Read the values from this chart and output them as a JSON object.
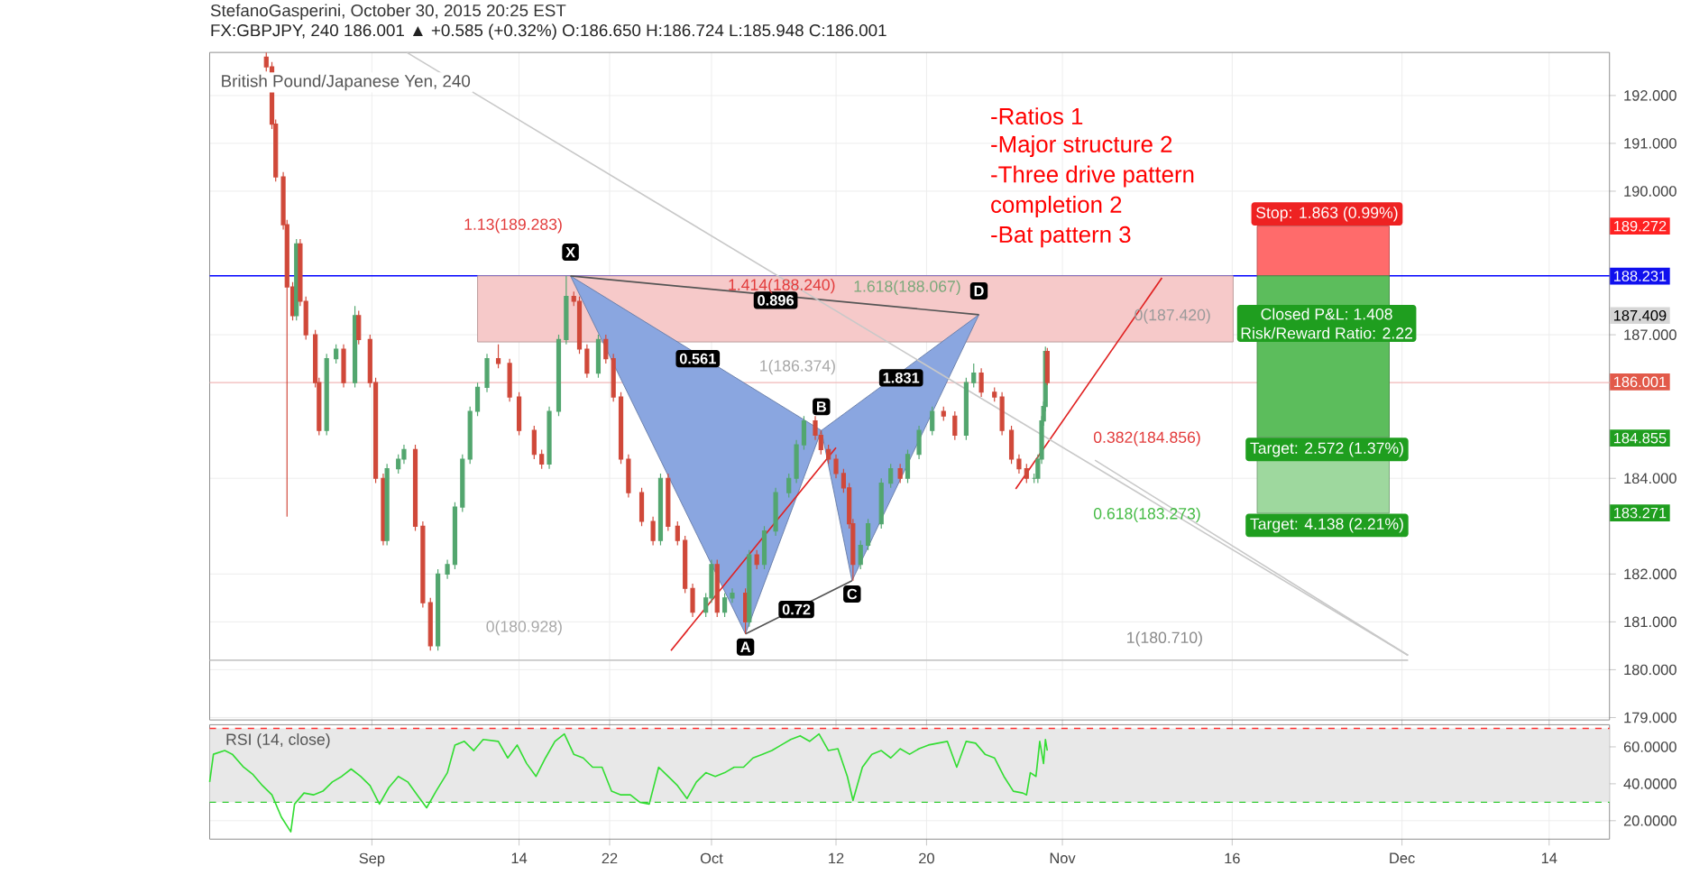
{
  "chart_data": [
    {
      "type": "candlestick",
      "title": "FX:GBPJPY, 240 186.001 ▲ +0.585 (+0.32%) O:186.650 H:186.724 L:185.948 C:186.001",
      "subtitle": "British Pound/Japanese Yen, 240",
      "x": [
        "2015-08-22T16:00",
        "2015-08-23T04:00",
        "2015-08-23T12:00",
        "2015-08-24T04:00",
        "2015-08-24T12:00",
        "2015-08-25T00:00",
        "2015-08-25T08:00",
        "2015-08-25T16:00",
        "2015-08-26T04:00",
        "2015-08-27T00:00",
        "2015-08-27T08:00",
        "2015-08-28T00:00",
        "2015-08-28T20:00",
        "2015-08-29T12:00",
        "2015-08-30T12:00",
        "2015-08-30T20:00",
        "2015-08-31T20:00",
        "2015-09-01T08:00",
        "2015-09-02T00:00",
        "2015-09-02T08:00",
        "2015-09-03T08:00",
        "2015-09-03T20:00",
        "2015-09-04T20:00",
        "2015-09-05T12:00",
        "2015-09-06T04:00",
        "2015-09-06T20:00",
        "2015-09-07T16:00",
        "2015-09-08T08:00",
        "2015-09-09T00:00",
        "2015-09-09T16:00",
        "2015-09-10T08:00",
        "2015-09-11T04:00",
        "2015-09-12T04:00",
        "2015-09-13T04:00",
        "2015-09-14T00:00",
        "2015-09-15T08:00",
        "2015-09-16T00:00",
        "2015-09-16T16:00",
        "2015-09-17T12:00",
        "2015-09-18T04:00",
        "2015-09-18T20:00",
        "2015-09-19T08:00",
        "2015-09-20T00:00",
        "2015-09-21T00:00",
        "2015-09-21T16:00",
        "2015-09-22T08:00",
        "2015-09-23T00:00",
        "2015-09-23T16:00",
        "2015-09-24T20:00",
        "2015-09-25T20:00",
        "2015-09-26T12:00",
        "2015-09-27T04:00",
        "2015-09-28T00:00",
        "2015-09-28T16:00",
        "2015-09-29T08:00",
        "2015-09-30T12:00",
        "2015-10-01T00:00",
        "2015-10-01T12:00",
        "2015-10-02T04:00",
        "2015-10-02T20:00",
        "2015-10-04T00:00",
        "2015-10-04T08:00",
        "2015-10-05T00:00",
        "2015-10-05T16:00",
        "2015-10-06T16:00",
        "2015-10-07T20:00",
        "2015-10-08T12:00",
        "2015-10-09T04:00",
        "2015-10-10T04:00",
        "2015-10-10T16:00",
        "2015-10-11T08:00",
        "2015-10-12T00:00",
        "2015-10-12T16:00",
        "2015-10-13T04:00",
        "2015-10-13T12:00",
        "2015-10-14T04:00",
        "2015-10-14T20:00",
        "2015-10-16T00:00",
        "2015-10-16T20:00",
        "2015-10-17T16:00",
        "2015-10-18T08:00",
        "2015-10-19T08:00",
        "2015-10-20T12:00",
        "2015-10-21T12:00",
        "2015-10-22T12:00",
        "2015-10-23T12:00",
        "2015-10-24T04:00",
        "2015-10-24T20:00",
        "2015-10-26T00:00",
        "2015-10-26T16:00",
        "2015-10-27T12:00",
        "2015-10-28T04:00",
        "2015-10-28T20:00",
        "2015-10-29T12:00",
        "2015-10-29T20:00",
        "2015-10-30T04:00",
        "2015-10-30T08:00",
        "2015-10-30T12:00",
        "2015-10-30T16:00"
      ],
      "ohlc": [
        [
          192.8,
          192.9,
          192.5,
          192.6
        ],
        [
          192.6,
          192.7,
          191.3,
          191.4
        ],
        [
          191.4,
          191.5,
          190.2,
          190.3
        ],
        [
          190.3,
          190.4,
          189.2,
          189.3
        ],
        [
          189.3,
          189.4,
          183.2,
          188.0
        ],
        [
          188.0,
          188.1,
          187.3,
          187.4
        ],
        [
          187.4,
          189.0,
          187.3,
          188.9
        ],
        [
          188.9,
          189.0,
          187.6,
          187.7
        ],
        [
          187.7,
          187.8,
          186.9,
          187.0
        ],
        [
          187.0,
          187.1,
          185.9,
          186.0
        ],
        [
          186.0,
          186.1,
          184.9,
          185.0
        ],
        [
          185.0,
          186.6,
          184.9,
          186.5
        ],
        [
          186.5,
          186.8,
          186.4,
          186.7
        ],
        [
          186.7,
          186.8,
          185.9,
          186.0
        ],
        [
          186.0,
          187.6,
          185.9,
          187.4
        ],
        [
          187.4,
          187.5,
          186.8,
          186.9
        ],
        [
          186.9,
          187.0,
          185.9,
          186.0
        ],
        [
          186.0,
          186.1,
          183.9,
          184.0
        ],
        [
          184.0,
          184.1,
          182.6,
          182.7
        ],
        [
          182.7,
          184.3,
          182.6,
          184.2
        ],
        [
          184.2,
          184.5,
          184.1,
          184.4
        ],
        [
          184.4,
          184.7,
          184.3,
          184.6
        ],
        [
          184.6,
          184.7,
          182.9,
          183.0
        ],
        [
          183.0,
          183.1,
          181.3,
          181.4
        ],
        [
          181.4,
          181.5,
          180.4,
          180.5
        ],
        [
          180.5,
          182.1,
          180.4,
          182.0
        ],
        [
          182.0,
          182.3,
          181.9,
          182.2
        ],
        [
          182.2,
          183.5,
          182.1,
          183.4
        ],
        [
          183.4,
          184.5,
          183.3,
          184.4
        ],
        [
          184.4,
          185.5,
          184.3,
          185.4
        ],
        [
          185.4,
          186.0,
          185.3,
          185.9
        ],
        [
          185.9,
          186.6,
          185.8,
          186.5
        ],
        [
          186.5,
          186.8,
          186.3,
          186.4
        ],
        [
          186.4,
          186.5,
          185.6,
          185.7
        ],
        [
          185.7,
          185.8,
          184.9,
          185.0
        ],
        [
          185.0,
          185.1,
          184.4,
          184.5
        ],
        [
          184.5,
          184.6,
          184.2,
          184.3
        ],
        [
          184.3,
          185.5,
          184.2,
          185.4
        ],
        [
          185.4,
          187.0,
          185.3,
          186.9
        ],
        [
          186.9,
          188.23,
          186.8,
          187.8
        ],
        [
          187.8,
          187.9,
          187.6,
          187.7
        ],
        [
          187.7,
          187.8,
          186.6,
          186.7
        ],
        [
          186.7,
          186.8,
          186.1,
          186.2
        ],
        [
          186.2,
          187.0,
          186.1,
          186.9
        ],
        [
          186.9,
          187.0,
          186.4,
          186.5
        ],
        [
          186.5,
          186.6,
          185.6,
          185.7
        ],
        [
          185.7,
          185.8,
          184.3,
          184.4
        ],
        [
          184.4,
          184.5,
          183.6,
          183.7
        ],
        [
          183.7,
          183.8,
          183.0,
          183.1
        ],
        [
          183.1,
          183.2,
          182.6,
          182.7
        ],
        [
          182.7,
          184.1,
          182.6,
          184.0
        ],
        [
          184.0,
          184.1,
          182.9,
          183.0
        ],
        [
          183.0,
          183.1,
          182.6,
          182.7
        ],
        [
          182.7,
          182.8,
          181.6,
          181.7
        ],
        [
          181.7,
          181.8,
          181.1,
          181.2
        ],
        [
          181.2,
          181.6,
          181.1,
          181.5
        ],
        [
          181.5,
          182.3,
          181.4,
          182.2
        ],
        [
          182.2,
          182.3,
          181.1,
          181.2
        ],
        [
          181.2,
          181.6,
          181.1,
          181.5
        ],
        [
          181.5,
          181.7,
          181.4,
          181.6
        ],
        [
          181.6,
          181.7,
          180.75,
          181.0
        ],
        [
          181.0,
          182.5,
          180.9,
          182.4
        ],
        [
          182.4,
          182.5,
          182.1,
          182.2
        ],
        [
          182.2,
          183.0,
          182.1,
          182.9
        ],
        [
          182.9,
          183.8,
          182.8,
          183.7
        ],
        [
          183.7,
          184.1,
          183.6,
          184.0
        ],
        [
          184.0,
          184.8,
          183.9,
          184.7
        ],
        [
          184.7,
          185.3,
          184.6,
          185.2
        ],
        [
          185.2,
          185.3,
          184.8,
          184.9
        ],
        [
          184.9,
          185.0,
          184.5,
          184.6
        ],
        [
          184.6,
          184.7,
          184.3,
          184.4
        ],
        [
          184.4,
          184.5,
          184.0,
          184.1
        ],
        [
          184.1,
          184.2,
          183.7,
          183.8
        ],
        [
          183.8,
          183.9,
          182.95,
          183.05
        ],
        [
          183.05,
          183.15,
          181.86,
          182.2
        ],
        [
          182.2,
          182.7,
          182.1,
          182.6
        ],
        [
          182.6,
          183.15,
          182.5,
          183.05
        ],
        [
          183.05,
          184.0,
          182.95,
          183.9
        ],
        [
          183.9,
          184.3,
          183.8,
          184.2
        ],
        [
          184.2,
          184.3,
          183.9,
          184.0
        ],
        [
          184.0,
          184.6,
          183.9,
          184.5
        ],
        [
          184.5,
          185.1,
          184.4,
          185.0
        ],
        [
          185.0,
          185.5,
          184.9,
          185.4
        ],
        [
          185.4,
          185.5,
          185.2,
          185.3
        ],
        [
          185.3,
          185.4,
          184.8,
          184.9
        ],
        [
          184.9,
          186.1,
          184.8,
          186.0
        ],
        [
          186.0,
          186.4,
          185.9,
          186.2
        ],
        [
          186.2,
          186.3,
          185.7,
          185.8
        ],
        [
          185.8,
          185.9,
          185.6,
          185.7
        ],
        [
          185.7,
          185.8,
          184.9,
          185.0
        ],
        [
          185.0,
          185.1,
          184.3,
          184.4
        ],
        [
          184.4,
          184.5,
          184.1,
          184.2
        ],
        [
          184.2,
          184.3,
          183.9,
          184.0
        ],
        [
          184.0,
          184.1,
          183.9,
          184.0
        ],
        [
          184.0,
          184.5,
          183.9,
          184.4
        ],
        [
          184.4,
          185.3,
          184.3,
          185.2
        ],
        [
          185.2,
          185.6,
          185.1,
          185.5
        ],
        [
          185.5,
          186.75,
          185.4,
          186.65
        ],
        [
          186.65,
          186.724,
          185.948,
          186.001
        ]
      ],
      "series": [
        {
          "type": "area",
          "color": "#f6c9c9",
          "x": [
            "2015-09-10T08:00",
            "2015-11-16T02:00",
            "2015-11-16T02:00",
            "2015-09-10T08:00"
          ],
          "values": [
            188.23,
            188.23,
            186.85,
            186.85
          ]
        },
        {
          "type": "area",
          "color": "#ff6b6b",
          "x": [
            "2015-11-18T05:00",
            "2015-11-29T21:00",
            "2015-11-29T21:00",
            "2015-11-18T05:00"
          ],
          "values": [
            189.272,
            189.272,
            188.231,
            188.231
          ]
        },
        {
          "type": "area",
          "color": "#5cbd5c",
          "x": [
            "2015-11-18T05:00",
            "2015-11-29T21:00",
            "2015-11-29T21:00",
            "2015-11-18T05:00"
          ],
          "values": [
            188.231,
            188.231,
            184.855,
            184.855
          ]
        },
        {
          "type": "area",
          "color": "#9ed89e",
          "x": [
            "2015-11-18T05:00",
            "2015-11-29T21:00",
            "2015-11-29T21:00",
            "2015-11-18T05:00"
          ],
          "values": [
            184.855,
            184.855,
            183.271,
            183.271
          ]
        },
        {
          "type": "area",
          "color": "#8aa6e0",
          "x": [
            "2015-09-18T13:00",
            "2015-10-04T00:00",
            "2015-10-10T17:00",
            "2015-09-18T13:00"
          ],
          "values": [
            188.23,
            180.75,
            185.0,
            188.23
          ]
        },
        {
          "type": "area",
          "color": "#8aa6e0",
          "x": [
            "2015-10-10T17:00",
            "2015-10-13T10:00",
            "2015-10-24T15:00",
            "2015-10-10T17:00"
          ],
          "values": [
            185.0,
            181.86,
            187.42,
            185.0
          ]
        },
        {
          "type": "line",
          "color": "#555555",
          "x": [
            "2015-09-18T13:00",
            "2015-10-24T15:00"
          ],
          "values": [
            188.23,
            187.42
          ]
        },
        {
          "type": "line",
          "color": "#555555",
          "x": [
            "2015-10-04T00:00",
            "2015-10-13T10:00"
          ],
          "values": [
            180.75,
            181.86
          ]
        },
        {
          "type": "line",
          "color": "#e02020",
          "x": [
            "2015-09-27T10:00",
            "2015-10-12T00:00"
          ],
          "values": [
            180.4,
            184.64
          ]
        },
        {
          "type": "line",
          "color": "#e02020",
          "x": [
            "2015-10-27T21:00",
            "2015-11-09T19:00"
          ],
          "values": [
            183.78,
            188.19
          ]
        },
        {
          "type": "line",
          "color": "#c8c8c8",
          "x": [
            "2015-09-04T02:00",
            "2015-12-01T13:00"
          ],
          "values": [
            192.9,
            180.3
          ]
        },
        {
          "type": "line",
          "color": "#c8c8c8",
          "x": [
            "2015-11-03T21:00",
            "2015-12-01T13:00"
          ],
          "values": [
            184.38,
            180.3
          ]
        },
        {
          "type": "line",
          "color": "#c8c8c8",
          "x": [
            "2015-08-17T16:00",
            "2015-12-01T13:00"
          ],
          "values": [
            180.2,
            180.2
          ]
        }
      ],
      "ref_lines": [
        {
          "axis": "y",
          "value": 188.231,
          "color": "#0000ff"
        },
        {
          "axis": "y",
          "value": 186.001,
          "color": "#f2b8b8"
        }
      ],
      "annotations": [
        "StefanoGasperini, October 30, 2015 20:25 EST",
        "-Ratios 1",
        "-Major structure 2",
        "-Three drive pattern",
        "completion 2",
        "-Bat pattern 3",
        "1.13(189.283)",
        "1.414(188.240)",
        "1.618(188.067)",
        "0(187.420)",
        "1(186.374)",
        "0.382(184.856)",
        "0.618(183.273)",
        "1(180.710)",
        "0(180.928)",
        "Closed P&L: 1.408",
        "Risk/Reward Ratio: 2.22",
        "189.272",
        "188.231",
        "187.409",
        "186.001",
        "184.855",
        "183.271",
        {
          "text": "X",
          "x": "2015-09-18T13:00",
          "y": 188.23
        },
        {
          "text": "A",
          "x": "2015-10-04T00:00",
          "y": 180.75
        },
        {
          "text": "B",
          "x": "2015-10-10T17:00",
          "y": 185.0
        },
        {
          "text": "C",
          "x": "2015-10-13T10:00",
          "y": 181.86
        },
        {
          "text": "D",
          "x": "2015-10-24T15:00",
          "y": 187.42
        },
        {
          "text": "0.896",
          "x": "2015-10-06T16:00",
          "y": 187.72
        },
        {
          "text": "0.561",
          "x": "2015-09-29T19:00",
          "y": 186.5
        },
        {
          "text": "1.831",
          "x": "2015-10-17T18:00",
          "y": 186.1
        },
        {
          "text": "0.72",
          "x": "2015-10-08T12:00",
          "y": 181.26
        },
        {
          "text": "Stop: 1.863 (0.99%)",
          "x": "2015-11-24T09:00",
          "y": 189.272
        },
        {
          "text": "Target: 2.572 (1.37%)",
          "x": "2015-11-24T09:00",
          "y": 184.855
        },
        {
          "text": "Target: 4.138 (2.21%)",
          "x": "2015-11-24T09:00",
          "y": 183.271
        }
      ],
      "xlim": [
        "2015-08-17T16:00",
        "2015-12-19T08:00"
      ],
      "ylim": [
        178.95,
        192.9
      ],
      "xticks": [
        {
          "value": "2015-09-01",
          "label": null
        },
        {
          "value": "2015-09-14",
          "label": null
        },
        {
          "value": "2015-09-22",
          "label": null
        },
        {
          "value": "2015-10-01",
          "label": null
        },
        {
          "value": "2015-10-12",
          "label": null
        },
        {
          "value": "2015-10-20",
          "label": null
        },
        {
          "value": "2015-11-01",
          "label": null
        },
        {
          "value": "2015-11-16",
          "label": null
        },
        {
          "value": "2015-12-01",
          "label": null
        },
        {
          "value": "2015-12-14",
          "label": null
        }
      ],
      "yticks": [
        {
          "value": 179,
          "label": "179.000"
        },
        {
          "value": 180,
          "label": "180.000"
        },
        {
          "value": 181,
          "label": "181.000"
        },
        {
          "value": 182,
          "label": "182.000"
        },
        {
          "value": 184,
          "label": "184.000"
        },
        {
          "value": 187,
          "label": "187.000"
        },
        {
          "value": 190,
          "label": "190.000"
        },
        {
          "value": 191,
          "label": "191.000"
        },
        {
          "value": 192,
          "label": "192.000"
        }
      ],
      "tick_labels": "y",
      "grid": true
    },
    {
      "type": "line",
      "title": "RSI (14, close)",
      "x": [
        "2015-08-17T16:00",
        "2015-08-18T00:00",
        "2015-08-19T00:00",
        "2015-08-19T16:00",
        "2015-08-20T16:00",
        "2015-08-21T12:00",
        "2015-08-22T08:00",
        "2015-08-23T04:00",
        "2015-08-24T00:00",
        "2015-08-24T20:00",
        "2015-08-25T04:00",
        "2015-08-26T00:00",
        "2015-08-26T20:00",
        "2015-08-27T16:00",
        "2015-08-28T12:00",
        "2015-08-29T08:00",
        "2015-08-30T04:00",
        "2015-08-31T00:00",
        "2015-08-31T20:00",
        "2015-09-01T16:00",
        "2015-09-02T12:00",
        "2015-09-03T08:00",
        "2015-09-04T04:00",
        "2015-09-05T00:00",
        "2015-09-05T20:00",
        "2015-09-06T16:00",
        "2015-09-07T16:00",
        "2015-09-08T08:00",
        "2015-09-09T04:00",
        "2015-09-10T00:00",
        "2015-09-10T20:00",
        "2015-09-12T04:00",
        "2015-09-13T00:00",
        "2015-09-13T20:00",
        "2015-09-14T16:00",
        "2015-09-15T12:00",
        "2015-09-16T08:00",
        "2015-09-17T04:00",
        "2015-09-18T00:00",
        "2015-09-18T20:00",
        "2015-09-19T16:00",
        "2015-09-20T12:00",
        "2015-09-21T08:00",
        "2015-09-22T04:00",
        "2015-09-23T00:00",
        "2015-09-23T20:00",
        "2015-09-24T16:00",
        "2015-09-25T12:00",
        "2015-09-26T08:00",
        "2015-09-27T04:00",
        "2015-09-28T00:00",
        "2015-09-28T20:00",
        "2015-09-29T16:00",
        "2015-09-30T12:00",
        "2015-10-01T08:00",
        "2015-10-02T04:00",
        "2015-10-03T00:00",
        "2015-10-03T20:00",
        "2015-10-04T16:00",
        "2015-10-05T12:00",
        "2015-10-06T08:00",
        "2015-10-07T04:00",
        "2015-10-08T00:00",
        "2015-10-08T20:00",
        "2015-10-09T16:00",
        "2015-10-10T12:00",
        "2015-10-11T08:00",
        "2015-10-12T04:00",
        "2015-10-13T00:00",
        "2015-10-13T12:00",
        "2015-10-14T08:00",
        "2015-10-15T04:00",
        "2015-10-16T00:00",
        "2015-10-16T20:00",
        "2015-10-17T16:00",
        "2015-10-18T12:00",
        "2015-10-19T08:00",
        "2015-10-20T04:00",
        "2015-10-21T00:00",
        "2015-10-21T20:00",
        "2015-10-22T16:00",
        "2015-10-23T12:00",
        "2015-10-24T08:00",
        "2015-10-25T04:00",
        "2015-10-26T00:00",
        "2015-10-26T20:00",
        "2015-10-27T16:00",
        "2015-10-28T12:00",
        "2015-10-28T20:00",
        "2015-10-29T04:00",
        "2015-10-29T16:00",
        "2015-10-30T00:00",
        "2015-10-30T08:00",
        "2015-10-30T12:00",
        "2015-10-30T16:00"
      ],
      "series": [
        {
          "color": "#33dd33",
          "values": [
            41,
            56,
            58,
            56,
            49,
            45,
            39,
            34,
            22,
            14,
            29,
            35,
            34,
            36,
            41,
            44,
            48,
            44,
            39,
            29,
            38,
            44,
            41,
            34,
            27,
            36,
            46,
            61,
            63,
            58,
            64,
            63,
            54,
            61,
            51,
            44,
            54,
            63,
            67,
            56,
            54,
            49,
            49,
            36,
            34,
            34,
            30,
            29,
            49,
            44,
            39,
            32,
            41,
            46,
            44,
            46,
            49,
            49,
            54,
            56,
            58,
            61,
            64,
            66,
            63,
            67,
            58,
            59,
            44,
            31,
            49,
            56,
            58,
            54,
            59,
            56,
            59,
            61,
            62,
            63,
            49,
            63,
            62,
            56,
            54,
            44,
            36,
            35,
            34,
            46,
            44,
            63,
            51,
            64,
            58
          ]
        }
      ],
      "bands": [
        {
          "axis": "y",
          "from": 30,
          "to": 70,
          "color": "#e8e8e8"
        }
      ],
      "ref_lines": [
        {
          "axis": "y",
          "value": 70,
          "color": "#ff3333",
          "line_style": "dashed"
        },
        {
          "axis": "y",
          "value": 30,
          "color": "#33cc33",
          "line_style": "dashed"
        }
      ],
      "xlim": [
        "2015-08-17T16:00",
        "2015-12-19T08:00"
      ],
      "ylim": [
        10,
        72
      ],
      "xticks": [
        {
          "value": "2015-09-01",
          "label": "Sep"
        },
        {
          "value": "2015-09-14",
          "label": "14"
        },
        {
          "value": "2015-09-22",
          "label": "22"
        },
        {
          "value": "2015-10-01",
          "label": "Oct"
        },
        {
          "value": "2015-10-12",
          "label": "12"
        },
        {
          "value": "2015-10-20",
          "label": "20"
        },
        {
          "value": "2015-11-01",
          "label": "Nov"
        },
        {
          "value": "2015-11-16",
          "label": "16"
        },
        {
          "value": "2015-12-01",
          "label": "Dec"
        },
        {
          "value": "2015-12-14",
          "label": "14"
        }
      ],
      "yticks": [
        {
          "value": 20,
          "label": "20.0000"
        },
        {
          "value": 40,
          "label": "40.0000"
        },
        {
          "value": 60,
          "label": "60.0000"
        }
      ],
      "grid": true
    }
  ]
}
